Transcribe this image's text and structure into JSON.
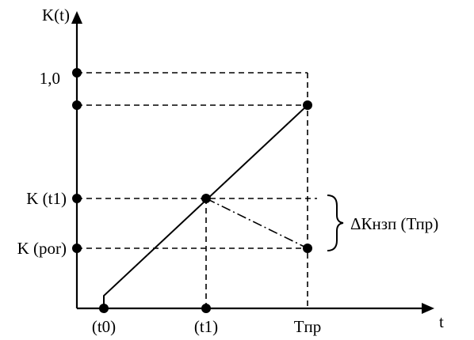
{
  "axes": {
    "y_label": "K(t)",
    "x_label": "t"
  },
  "y_ticks": {
    "one": "1,0",
    "k_t1": "K (t1)",
    "k_por": "K (por)"
  },
  "x_ticks": {
    "t0": "(t0)",
    "t1": "(t1)",
    "tpr": "Tпр"
  },
  "annotation": {
    "delta": "ΔКнзп (Тпр)"
  }
}
